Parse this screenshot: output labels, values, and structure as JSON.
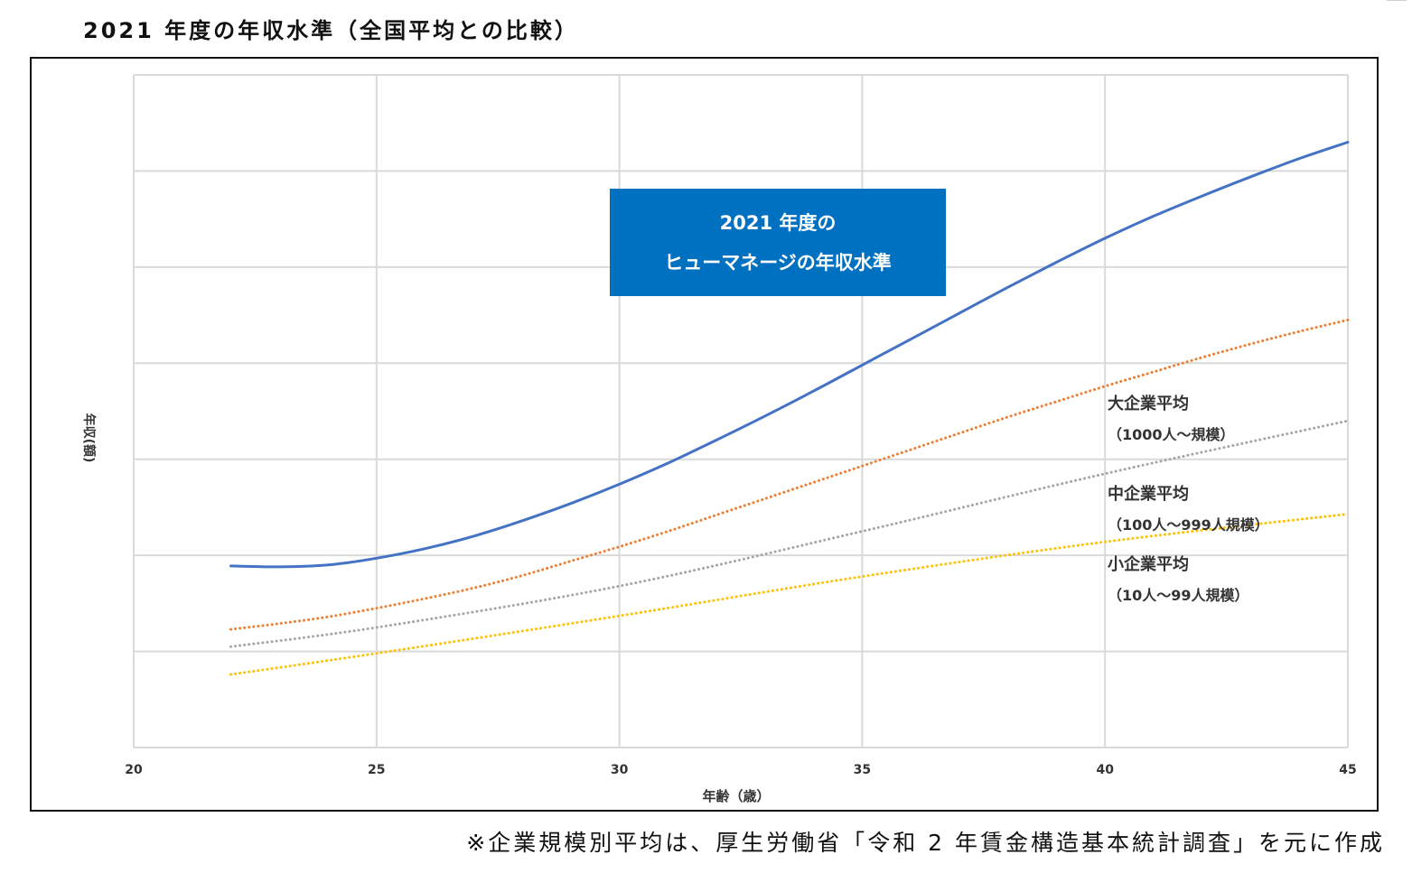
{
  "page": {
    "title": "2021 年度の年収水準（全国平均との比較）",
    "source_note": "※企業規模別平均は、厚生労働省「令和 2 年賃金構造基本統計調査」を元に作成"
  },
  "chart_data": {
    "type": "line",
    "title": "2021 年度の年収水準（全国平均との比較）",
    "xlabel": "年齢（歳）",
    "ylabel": "年収(額)",
    "xlim": [
      20,
      45
    ],
    "ylim": [
      0,
      7
    ],
    "x_ticks": [
      20,
      25,
      30,
      35,
      40,
      45
    ],
    "y_tick_labels_shown": false,
    "grid": true,
    "colors": {
      "humanage": "#4472C4",
      "large": "#ED7D31",
      "medium": "#A5A5A5",
      "small": "#FFC000",
      "callout": "#0070C0",
      "grid": "#d9d9d9"
    },
    "callout": {
      "line1": "2021 年度の",
      "line2": "ヒューマネージの年収水準"
    },
    "series": [
      {
        "key": "humanage",
        "name": "2021 年度のヒューマネージの年収水準",
        "style": "solid",
        "x": [
          22,
          23,
          24,
          25,
          26,
          27,
          28,
          29,
          30,
          31,
          32,
          33,
          34,
          35,
          36,
          37,
          38,
          39,
          40,
          41,
          42,
          43,
          44,
          45
        ],
        "y": [
          1.89,
          1.88,
          1.9,
          1.97,
          2.07,
          2.2,
          2.36,
          2.54,
          2.74,
          2.96,
          3.2,
          3.45,
          3.71,
          3.98,
          4.25,
          4.52,
          4.79,
          5.05,
          5.3,
          5.53,
          5.74,
          5.94,
          6.13,
          6.3
        ]
      },
      {
        "key": "large",
        "label_line1": "大企業平均",
        "label_line2": "（1000人～規模）",
        "style": "dotted",
        "x": [
          22,
          23,
          24,
          25,
          26,
          27,
          28,
          29,
          30,
          31,
          32,
          33,
          34,
          35,
          36,
          37,
          38,
          39,
          40,
          41,
          42,
          43,
          44,
          45
        ],
        "y": [
          1.23,
          1.29,
          1.36,
          1.45,
          1.55,
          1.66,
          1.79,
          1.94,
          2.09,
          2.25,
          2.42,
          2.59,
          2.76,
          2.93,
          3.1,
          3.27,
          3.44,
          3.6,
          3.76,
          3.91,
          4.06,
          4.2,
          4.33,
          4.45
        ]
      },
      {
        "key": "medium",
        "label_line1": "中企業平均",
        "label_line2": "（100人～999人規模）",
        "style": "dotted",
        "x": [
          22,
          25,
          30,
          35,
          40,
          45
        ],
        "y": [
          1.05,
          1.25,
          1.68,
          2.25,
          2.85,
          3.4
        ]
      },
      {
        "key": "small",
        "label_line1": "小企業平均",
        "label_line2": "（10人～99人規模）",
        "style": "dotted",
        "x": [
          22,
          25,
          30,
          35,
          40,
          45
        ],
        "y": [
          0.76,
          0.98,
          1.37,
          1.78,
          2.14,
          2.43
        ]
      }
    ]
  }
}
